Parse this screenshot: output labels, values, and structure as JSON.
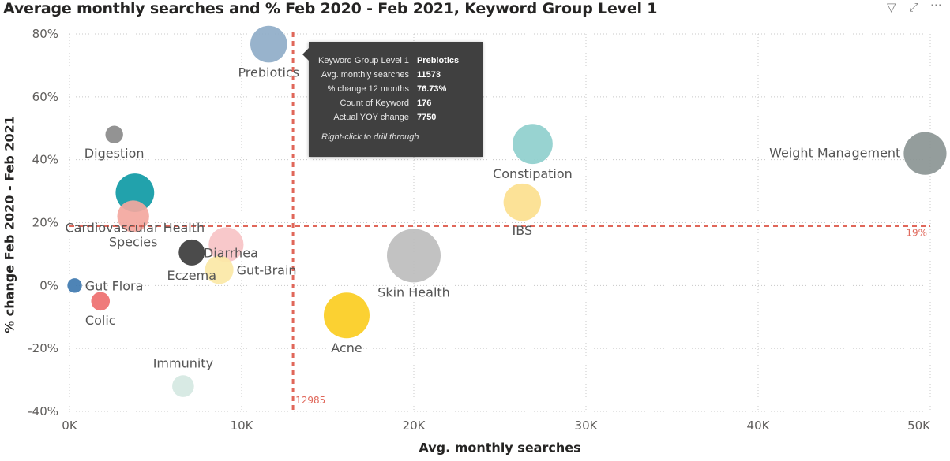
{
  "header": {
    "title": "Average monthly searches and % Feb 2020 - Feb 2021, Keyword Group Level 1",
    "icons": [
      "filter-icon",
      "focus-mode-icon",
      "more-options-icon"
    ]
  },
  "chart_data": {
    "type": "scatter",
    "title": "Average monthly searches and % Feb 2020 - Feb 2021, Keyword Group Level 1",
    "xlabel": "Avg. monthly searches",
    "ylabel": "% change Feb 2020 - Feb 2021",
    "xlim": [
      0,
      50000
    ],
    "ylim": [
      -40,
      80
    ],
    "x_ticks": [
      0,
      10000,
      20000,
      30000,
      40000,
      50000
    ],
    "x_tick_labels": [
      "0K",
      "10K",
      "20K",
      "30K",
      "40K",
      "50K"
    ],
    "y_ticks": [
      80,
      60,
      40,
      20,
      0,
      -20,
      -40
    ],
    "y_tick_labels": [
      "80%",
      "60%",
      "40%",
      "20%",
      "0%",
      "-20%",
      "-40%"
    ],
    "grid": "dotted",
    "points": [
      {
        "label": "Prebiotics",
        "x": 11573,
        "y": 76.73,
        "size": 7750,
        "color": "#8fadc8",
        "label_pos": "below"
      },
      {
        "label": "Digestion",
        "x": 2600,
        "y": 48,
        "size": 1800,
        "color": "#8a8a8a",
        "label_pos": "below"
      },
      {
        "label": "Cardiovascular Health",
        "x": 3800,
        "y": 29.5,
        "size": 8500,
        "color": "#0f9aa5",
        "label_pos": "below-wide"
      },
      {
        "label": "Species",
        "x": 3700,
        "y": 22,
        "size": 5800,
        "color": "#f3a79e",
        "label_pos": "below"
      },
      {
        "label": "Diarrhea",
        "x": 9100,
        "y": 13,
        "size": 7000,
        "color": "#f7c3c6",
        "label_pos": "below-right"
      },
      {
        "label": "Gut-Brain",
        "x": 8700,
        "y": 5,
        "size": 4600,
        "color": "#fbe8a6",
        "label_pos": "right"
      },
      {
        "label": "Eczema",
        "x": 7100,
        "y": 10.5,
        "size": 3900,
        "color": "#3c3c3c",
        "label_pos": "below"
      },
      {
        "label": "Gut Flora",
        "x": 300,
        "y": 0,
        "size": 1200,
        "color": "#3f79b0",
        "label_pos": "right"
      },
      {
        "label": "Colic",
        "x": 1800,
        "y": -5,
        "size": 2000,
        "color": "#ee6f6f",
        "label_pos": "below"
      },
      {
        "label": "Immunity",
        "x": 6600,
        "y": -32,
        "size": 2700,
        "color": "#d5e8e2",
        "label_pos": "above"
      },
      {
        "label": "Acne",
        "x": 16100,
        "y": -9.5,
        "size": 12000,
        "color": "#fbcd21",
        "label_pos": "below"
      },
      {
        "label": "Skin Health",
        "x": 20000,
        "y": 9.5,
        "size": 16500,
        "color": "#bdbdbd",
        "label_pos": "below"
      },
      {
        "label": "IBS",
        "x": 26300,
        "y": 26.5,
        "size": 8000,
        "color": "#fcdf8e",
        "label_pos": "below"
      },
      {
        "label": "Constipation",
        "x": 26900,
        "y": 45,
        "size": 9200,
        "color": "#8fcfcd",
        "label_pos": "below"
      },
      {
        "label": "Weight Management",
        "x": 49700,
        "y": 42,
        "size": 10500,
        "color": "#8b9594",
        "label_pos": "left"
      }
    ],
    "reference_lines": [
      {
        "axis": "x",
        "value": 12985,
        "label": "12985",
        "color": "#e0675a"
      },
      {
        "axis": "y",
        "value": 19,
        "label": "19%",
        "color": "#e0675a"
      }
    ]
  },
  "tooltip": {
    "rows": [
      {
        "key": "Keyword Group Level 1",
        "value": "Prebiotics"
      },
      {
        "key": "Avg. monthly searches",
        "value": "11573"
      },
      {
        "key": "% change 12 months",
        "value": "76.73%"
      },
      {
        "key": "Count of Keyword",
        "value": "176"
      },
      {
        "key": "Actual YOY change",
        "value": "7750"
      }
    ],
    "hint": "Right-click to drill through"
  }
}
